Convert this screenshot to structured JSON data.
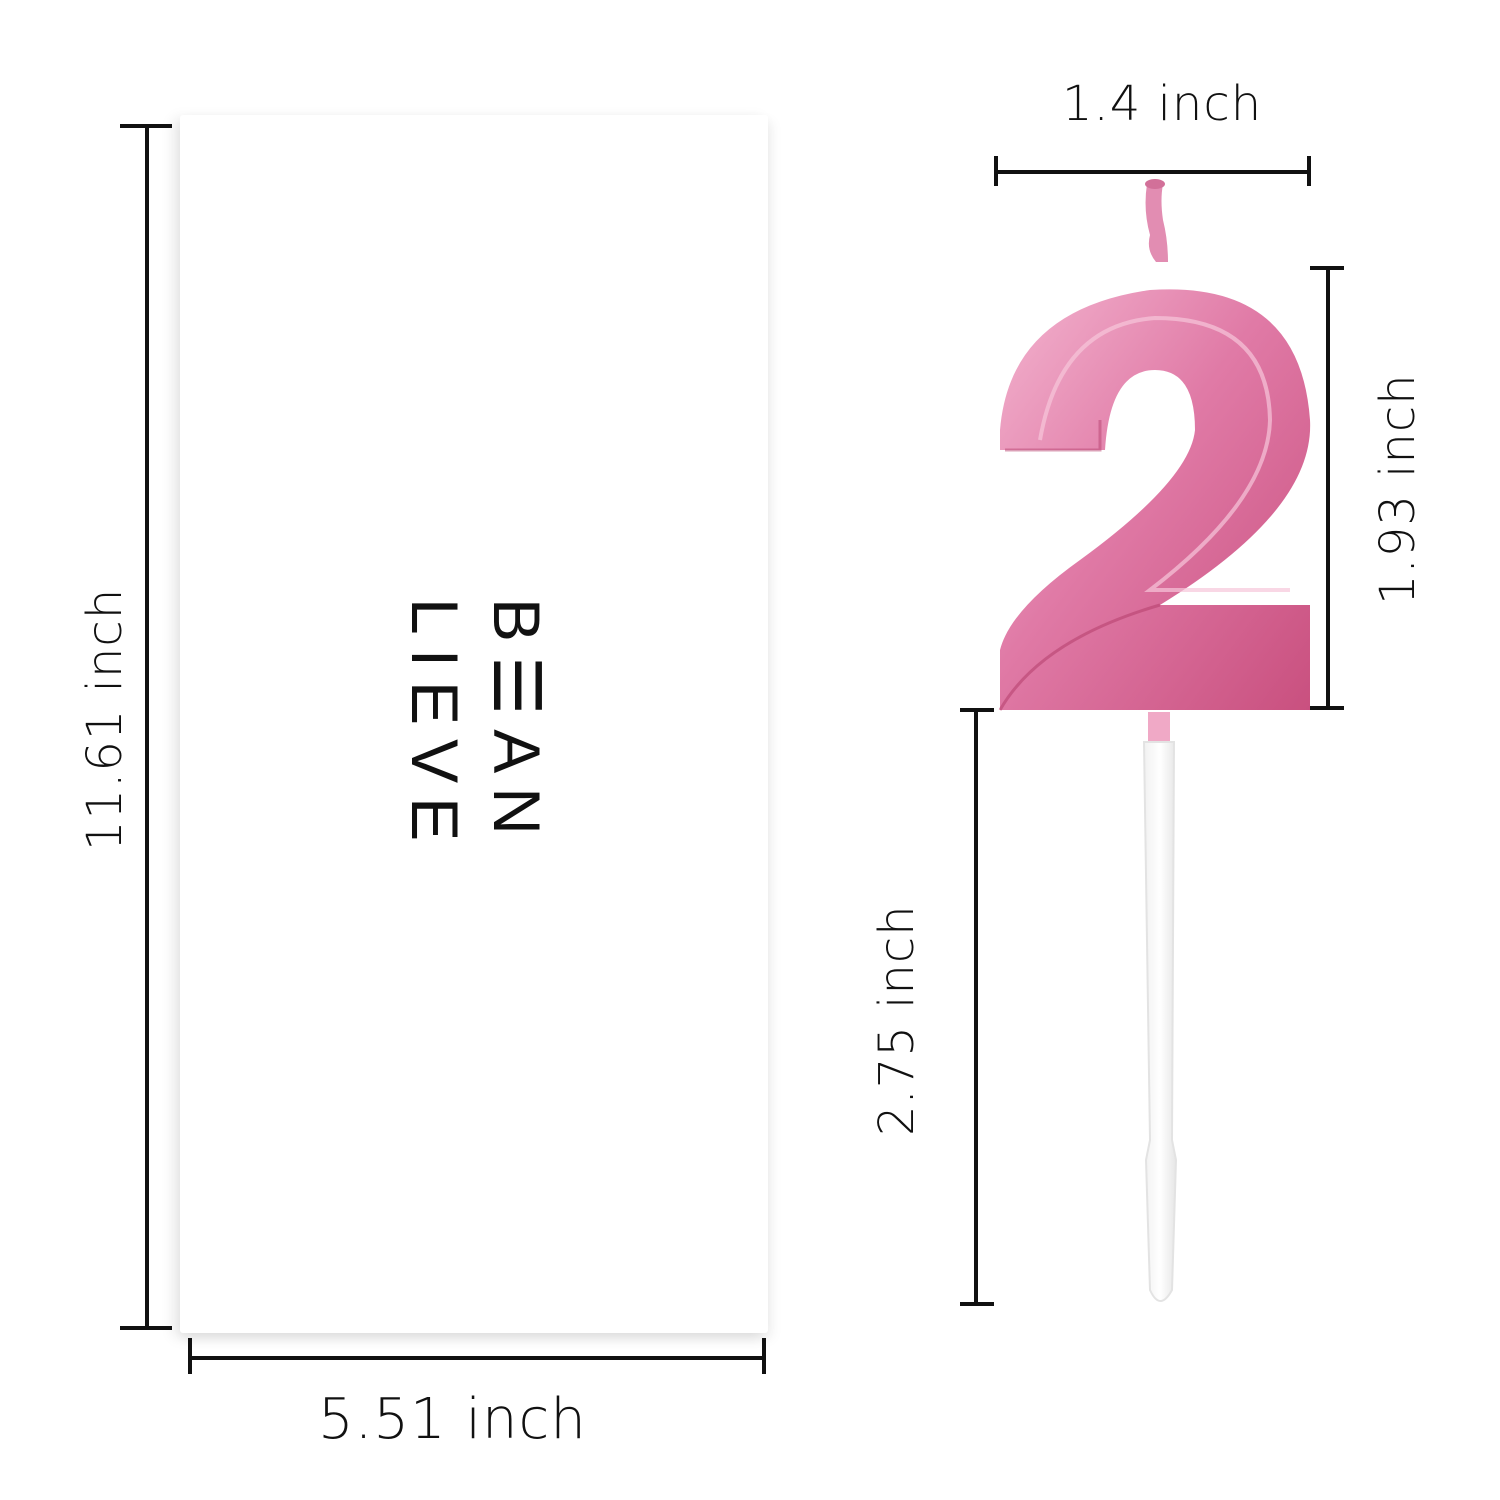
{
  "brand": {
    "line1": "B☰AN",
    "line2": "LIEVE"
  },
  "dimensions": {
    "card_height": "11.61 inch",
    "card_width": "5.51 inch",
    "candle_width": "1.4 inch",
    "numeral_height": "1.93 inch",
    "stick_length": "2.75 inch"
  },
  "colors": {
    "candle": "#e8a0bc",
    "candle_shade": "#c94f7f",
    "lines": "#111111"
  },
  "candle_numeral": "2"
}
